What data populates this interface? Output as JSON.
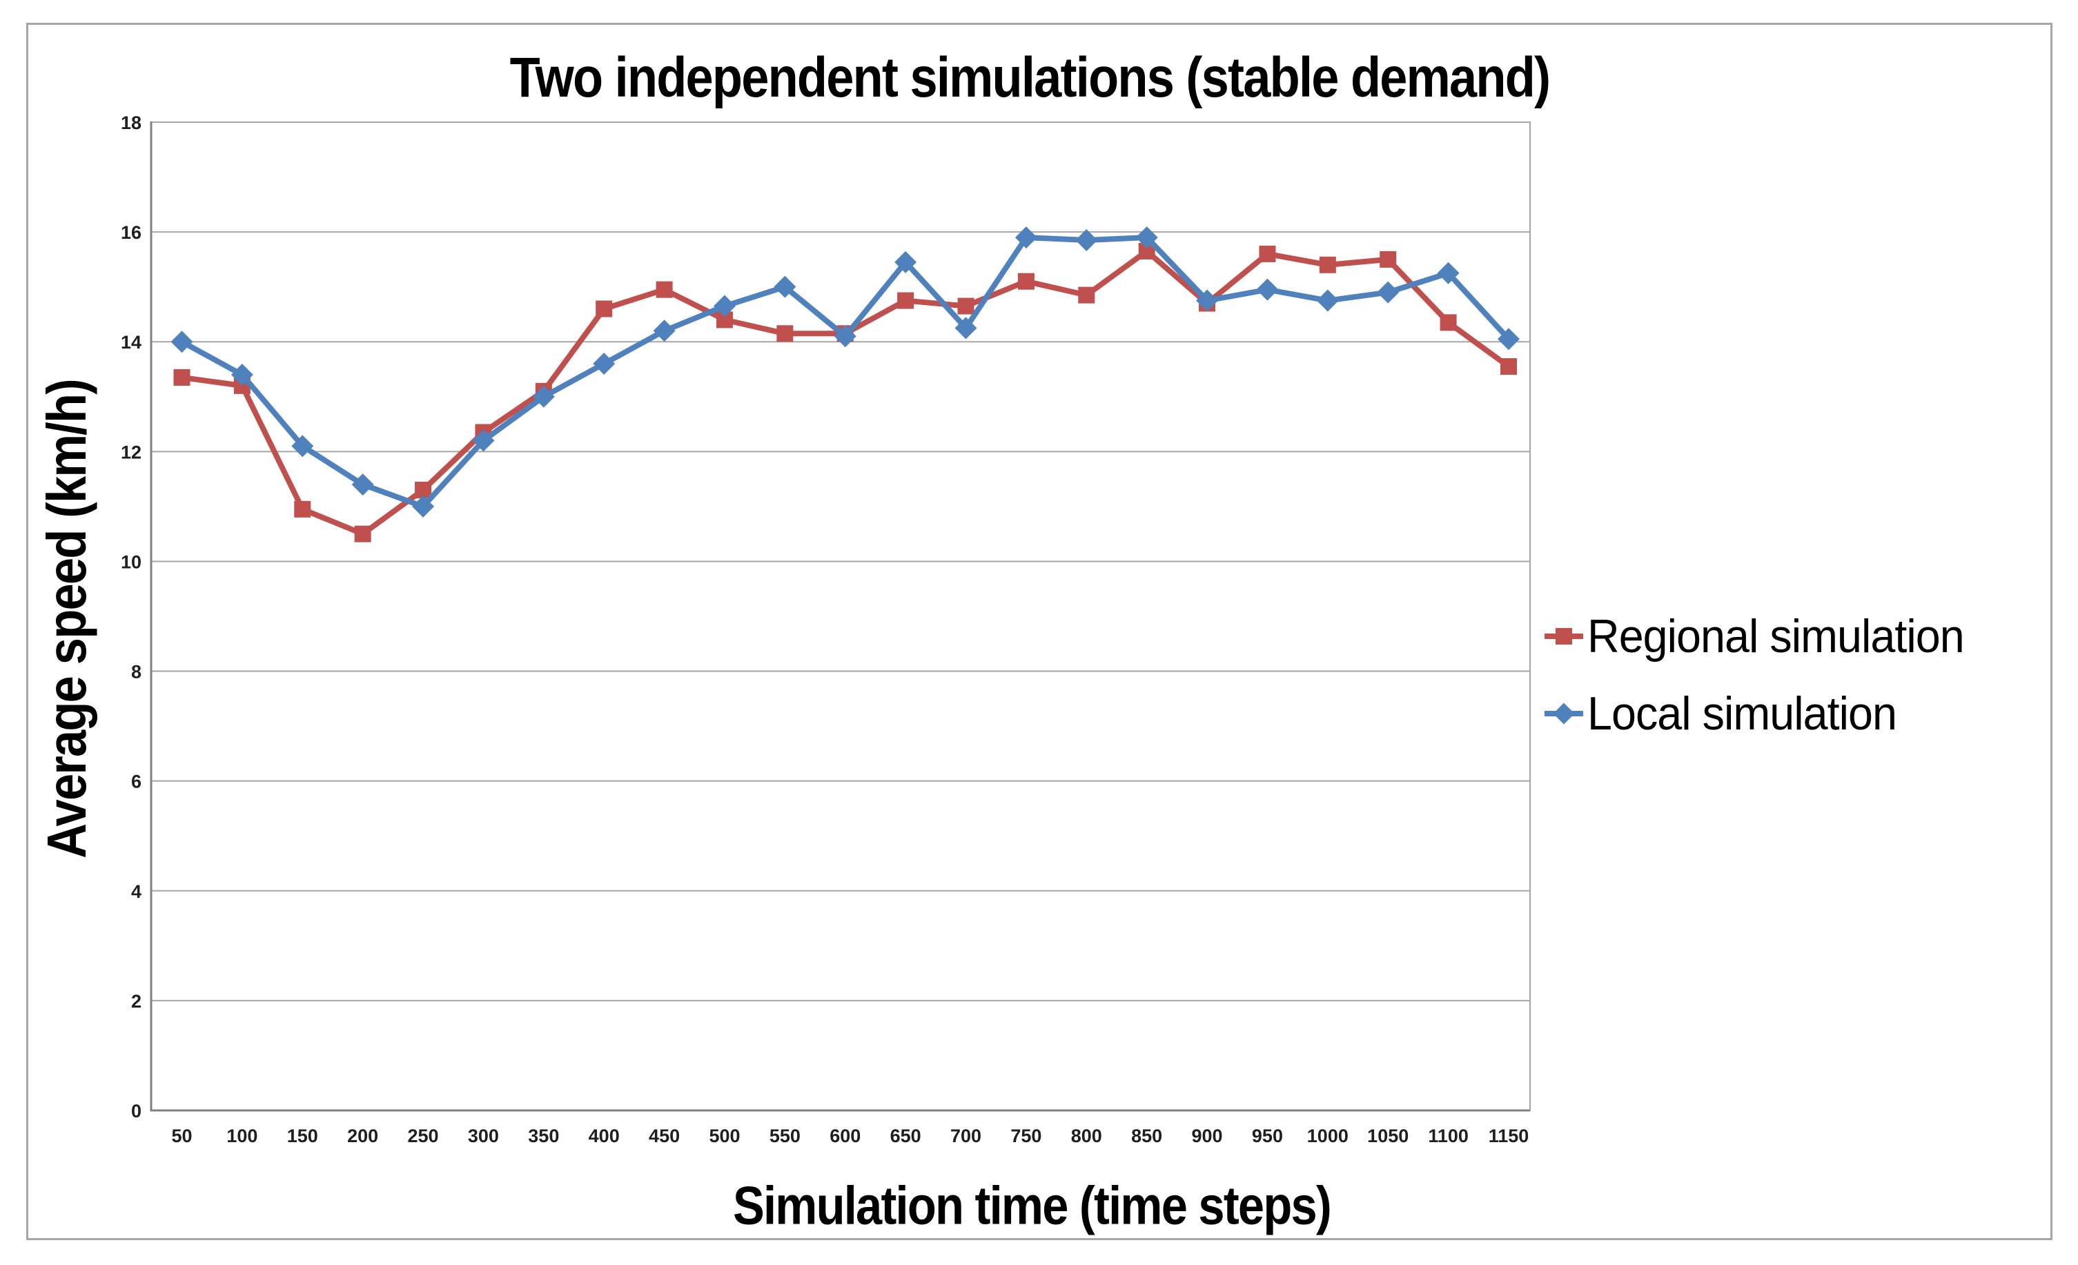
{
  "figure": {
    "title": "Two independent simulations (stable demand)",
    "x_axis_title": "Simulation time (time steps)",
    "y_axis_title": "Average speed (km/h)"
  },
  "legend": {
    "position": "right",
    "items": [
      {
        "label": "Regional simulation",
        "color": "#C0504D",
        "marker": "square"
      },
      {
        "label": "Local simulation",
        "color": "#4F81BD",
        "marker": "diamond"
      }
    ]
  },
  "chart_data": {
    "type": "line",
    "title": "Two independent simulations (stable demand)",
    "xlabel": "Simulation time (time steps)",
    "ylabel": "Average speed (km/h)",
    "x": [
      50,
      100,
      150,
      200,
      250,
      300,
      350,
      400,
      450,
      500,
      550,
      600,
      650,
      700,
      750,
      800,
      850,
      900,
      950,
      1000,
      1050,
      1100,
      1150
    ],
    "series": [
      {
        "name": "Regional simulation",
        "color": "#C0504D",
        "marker": "square",
        "values": [
          13.35,
          13.2,
          10.95,
          10.5,
          11.3,
          12.35,
          13.1,
          14.6,
          14.95,
          14.4,
          14.15,
          14.15,
          14.75,
          14.65,
          15.1,
          14.85,
          15.65,
          14.7,
          15.6,
          15.4,
          15.5,
          14.35,
          13.55
        ]
      },
      {
        "name": "Local simulation",
        "color": "#4F81BD",
        "marker": "diamond",
        "values": [
          14.0,
          13.4,
          12.1,
          11.4,
          11.0,
          12.2,
          13.0,
          13.6,
          14.2,
          14.65,
          15.0,
          14.1,
          15.45,
          14.25,
          15.9,
          15.85,
          15.9,
          14.75,
          14.95,
          14.75,
          14.9,
          15.25,
          14.05
        ]
      }
    ],
    "ylim": [
      0,
      18
    ],
    "y_ticks": [
      0,
      2,
      4,
      6,
      8,
      10,
      12,
      14,
      16,
      18
    ],
    "grid": true,
    "legend_position": "right"
  },
  "colors": {
    "series_regional": "#C0504D",
    "series_local": "#4F81BD",
    "gridline": "#a6a6a6",
    "axis_line": "#808080",
    "outer_border": "#a6a6a6",
    "text": "#000000"
  }
}
